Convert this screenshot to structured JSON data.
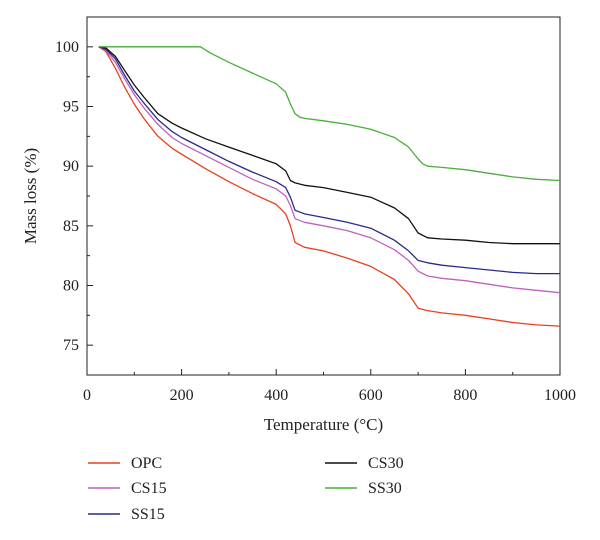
{
  "chart_data": {
    "type": "line",
    "title": "",
    "xlabel": "Temperature (°C)",
    "ylabel": "Mass loss (%)",
    "xlim": [
      0,
      1000
    ],
    "ylim": [
      72.5,
      102.5
    ],
    "x_ticks": [
      0,
      200,
      400,
      600,
      800,
      1000
    ],
    "y_ticks": [
      75,
      80,
      85,
      90,
      95,
      100
    ],
    "grid": false,
    "legend_position": "bottom",
    "series": [
      {
        "name": "OPC",
        "color": "#e8401c",
        "x": [
          25,
          40,
          60,
          80,
          100,
          120,
          150,
          180,
          200,
          250,
          300,
          350,
          400,
          420,
          430,
          440,
          460,
          500,
          550,
          600,
          650,
          680,
          700,
          720,
          750,
          800,
          850,
          900,
          950,
          1000
        ],
        "y": [
          100,
          99.6,
          98.2,
          96.6,
          95.2,
          94.0,
          92.5,
          91.5,
          91.0,
          89.8,
          88.7,
          87.7,
          86.8,
          86.0,
          85.0,
          83.6,
          83.2,
          82.9,
          82.3,
          81.6,
          80.5,
          79.3,
          78.1,
          77.9,
          77.7,
          77.5,
          77.2,
          76.9,
          76.7,
          76.6
        ]
      },
      {
        "name": "CS15",
        "color": "#c060c0",
        "x": [
          25,
          40,
          60,
          80,
          100,
          120,
          150,
          180,
          200,
          250,
          300,
          350,
          400,
          420,
          430,
          440,
          460,
          500,
          550,
          600,
          650,
          680,
          700,
          720,
          750,
          800,
          850,
          900,
          950,
          1000
        ],
        "y": [
          100,
          99.7,
          98.7,
          97.3,
          96.0,
          94.9,
          93.5,
          92.4,
          91.9,
          90.9,
          89.9,
          88.9,
          88.1,
          87.5,
          86.7,
          85.6,
          85.3,
          85.0,
          84.6,
          84.0,
          83.0,
          82.1,
          81.2,
          80.8,
          80.6,
          80.4,
          80.1,
          79.8,
          79.6,
          79.4
        ]
      },
      {
        "name": "SS15",
        "color": "#2a2a8c",
        "x": [
          25,
          40,
          60,
          80,
          100,
          120,
          150,
          180,
          200,
          250,
          300,
          350,
          400,
          420,
          430,
          440,
          460,
          500,
          550,
          600,
          650,
          680,
          700,
          720,
          750,
          800,
          850,
          900,
          950,
          1000
        ],
        "y": [
          100,
          99.8,
          99.0,
          97.6,
          96.3,
          95.3,
          93.9,
          92.9,
          92.4,
          91.4,
          90.4,
          89.5,
          88.7,
          88.2,
          87.4,
          86.3,
          86.0,
          85.7,
          85.3,
          84.8,
          83.8,
          82.9,
          82.1,
          81.9,
          81.7,
          81.5,
          81.3,
          81.1,
          81.0,
          81.0
        ]
      },
      {
        "name": "CS30",
        "color": "#111111",
        "x": [
          25,
          40,
          60,
          80,
          100,
          120,
          150,
          180,
          200,
          250,
          300,
          350,
          400,
          420,
          430,
          440,
          460,
          500,
          550,
          600,
          650,
          680,
          700,
          720,
          750,
          800,
          850,
          900,
          950,
          1000
        ],
        "y": [
          100,
          99.9,
          99.2,
          98.0,
          96.8,
          95.8,
          94.4,
          93.6,
          93.2,
          92.3,
          91.6,
          90.9,
          90.2,
          89.6,
          88.8,
          88.6,
          88.4,
          88.2,
          87.8,
          87.4,
          86.5,
          85.6,
          84.4,
          84.0,
          83.9,
          83.8,
          83.6,
          83.5,
          83.5,
          83.5
        ]
      },
      {
        "name": "SS30",
        "color": "#4aae3a",
        "x": [
          25,
          100,
          150,
          200,
          240,
          260,
          300,
          350,
          400,
          420,
          430,
          440,
          450,
          460,
          500,
          550,
          600,
          650,
          680,
          700,
          710,
          720,
          750,
          800,
          850,
          900,
          950,
          1000
        ],
        "y": [
          100,
          100,
          100,
          100,
          100,
          99.5,
          98.7,
          97.8,
          96.9,
          96.2,
          95.2,
          94.4,
          94.1,
          94.0,
          93.8,
          93.5,
          93.1,
          92.4,
          91.6,
          90.6,
          90.2,
          90.0,
          89.9,
          89.7,
          89.4,
          89.1,
          88.9,
          88.8
        ]
      }
    ]
  }
}
